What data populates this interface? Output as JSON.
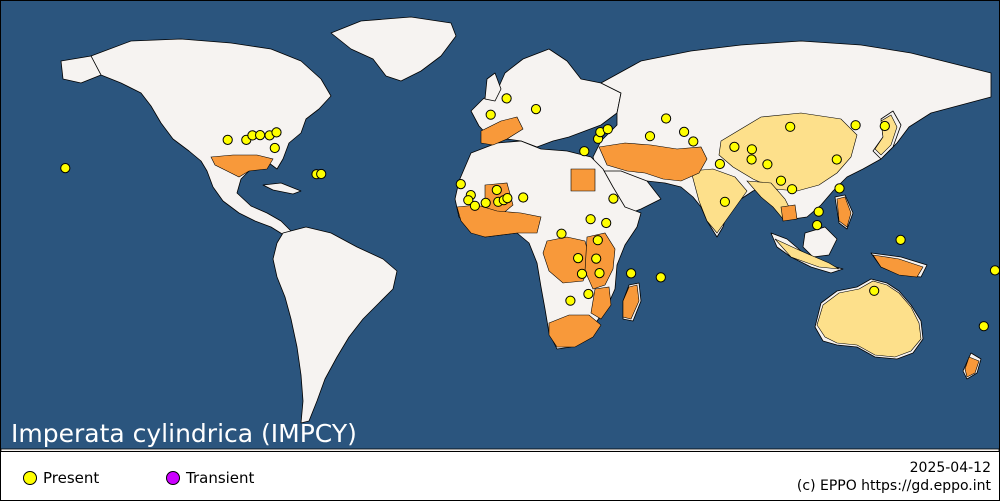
{
  "title": "Imperata cylindrica (IMPCY)",
  "date": "2025-04-12",
  "credit": "(c) EPPO https://gd.eppo.int",
  "legend": [
    {
      "label": "Present",
      "color": "#ffff00"
    },
    {
      "label": "Transient",
      "color": "#cc00ff"
    }
  ],
  "colors": {
    "ocean": "#2b557e",
    "land": "#f6f3f1",
    "country_present": "#fde08b",
    "region_present": "#f8993a",
    "border": "#000000"
  },
  "records": [
    {
      "place": "Hawaii",
      "lon": -157.0,
      "lat": 20.5,
      "status": "present"
    },
    {
      "place": "Texas",
      "lon": -98.5,
      "lat": 31.0,
      "status": "present"
    },
    {
      "place": "Louisiana",
      "lon": -91.8,
      "lat": 31.0,
      "status": "present"
    },
    {
      "place": "Mississippi",
      "lon": -89.6,
      "lat": 32.7,
      "status": "present"
    },
    {
      "place": "Alabama",
      "lon": -86.8,
      "lat": 32.8,
      "status": "present"
    },
    {
      "place": "Georgia (US)",
      "lon": -83.4,
      "lat": 32.7,
      "status": "present"
    },
    {
      "place": "South Carolina",
      "lon": -80.9,
      "lat": 33.8,
      "status": "present"
    },
    {
      "place": "Florida",
      "lon": -81.5,
      "lat": 28.0,
      "status": "present"
    },
    {
      "place": "Puerto Rico",
      "lon": -66.5,
      "lat": 18.2,
      "status": "present"
    },
    {
      "place": "Virgin Islands",
      "lon": -64.8,
      "lat": 18.3,
      "status": "present"
    },
    {
      "place": "Senegal",
      "lon": -14.5,
      "lat": 14.5,
      "status": "present"
    },
    {
      "place": "Guinea",
      "lon": -10.9,
      "lat": 10.4,
      "status": "present"
    },
    {
      "place": "Sierra Leone",
      "lon": -11.8,
      "lat": 8.5,
      "status": "present"
    },
    {
      "place": "Liberia",
      "lon": -9.4,
      "lat": 6.4,
      "status": "present"
    },
    {
      "place": "Cote d'Ivoire",
      "lon": -5.5,
      "lat": 7.5,
      "status": "present"
    },
    {
      "place": "Ghana",
      "lon": -1.0,
      "lat": 7.9,
      "status": "present"
    },
    {
      "place": "Burkina Faso",
      "lon": -1.5,
      "lat": 12.3,
      "status": "present"
    },
    {
      "place": "Togo",
      "lon": 1.0,
      "lat": 8.5,
      "status": "present"
    },
    {
      "place": "Benin",
      "lon": 2.3,
      "lat": 9.3,
      "status": "present"
    },
    {
      "place": "Nigeria",
      "lon": 8.0,
      "lat": 9.5,
      "status": "present"
    },
    {
      "place": "Egypt",
      "lon": 30.0,
      "lat": 26.8,
      "status": "present"
    },
    {
      "place": "Israel",
      "lon": 35.0,
      "lat": 31.4,
      "status": "present"
    },
    {
      "place": "Lebanon",
      "lon": 35.8,
      "lat": 33.9,
      "status": "present"
    },
    {
      "place": "Syria",
      "lon": 38.5,
      "lat": 35.0,
      "status": "present"
    },
    {
      "place": "Iran",
      "lon": 53.7,
      "lat": 32.4,
      "status": "present"
    },
    {
      "place": "Turkmenistan",
      "lon": 59.5,
      "lat": 39.0,
      "status": "present"
    },
    {
      "place": "Afghanistan",
      "lon": 66.0,
      "lat": 34.0,
      "status": "present"
    },
    {
      "place": "Pakistan",
      "lon": 69.3,
      "lat": 30.4,
      "status": "present"
    },
    {
      "place": "Nepal",
      "lon": 84.1,
      "lat": 28.4,
      "status": "present"
    },
    {
      "place": "Bhutan",
      "lon": 90.4,
      "lat": 27.5,
      "status": "present"
    },
    {
      "place": "Bangladesh",
      "lon": 90.3,
      "lat": 23.7,
      "status": "present"
    },
    {
      "place": "India",
      "lon": 78.9,
      "lat": 22.0,
      "status": "present"
    },
    {
      "place": "Myanmar",
      "lon": 96.0,
      "lat": 21.9,
      "status": "present"
    },
    {
      "place": "Thailand",
      "lon": 100.9,
      "lat": 15.8,
      "status": "present"
    },
    {
      "place": "Cambodia",
      "lon": 104.9,
      "lat": 12.6,
      "status": "present"
    },
    {
      "place": "Sri Lanka",
      "lon": 80.7,
      "lat": 7.9,
      "status": "present"
    },
    {
      "place": "China",
      "lon": 104.2,
      "lat": 35.9,
      "status": "present"
    },
    {
      "place": "Korea",
      "lon": 127.8,
      "lat": 36.5,
      "status": "present"
    },
    {
      "place": "Japan",
      "lon": 138.3,
      "lat": 36.2,
      "status": "present"
    },
    {
      "place": "Taiwan",
      "lon": 121.0,
      "lat": 23.7,
      "status": "present"
    },
    {
      "place": "Philippines",
      "lon": 122.0,
      "lat": 12.9,
      "status": "present"
    },
    {
      "place": "Malaysia",
      "lon": 114.5,
      "lat": 4.2,
      "status": "present"
    },
    {
      "place": "Indonesia",
      "lon": 113.9,
      "lat": -0.8,
      "status": "present"
    },
    {
      "place": "Papua New Guinea",
      "lon": 144.0,
      "lat": -6.3,
      "status": "present"
    },
    {
      "place": "Australia",
      "lon": 134.5,
      "lat": -25.3,
      "status": "present"
    },
    {
      "place": "Fiji",
      "lon": 178.0,
      "lat": -17.7,
      "status": "present"
    },
    {
      "place": "New Zealand",
      "lon": 174.0,
      "lat": -38.5,
      "status": "present"
    },
    {
      "place": "Madagascar",
      "lon": 46.9,
      "lat": -18.8,
      "status": "present"
    },
    {
      "place": "Mauritius",
      "lon": 57.6,
      "lat": -20.3,
      "status": "present"
    },
    {
      "place": "Zambia",
      "lon": 27.8,
      "lat": -13.1,
      "status": "present"
    },
    {
      "place": "Tanzania",
      "lon": 34.9,
      "lat": -6.4,
      "status": "present"
    },
    {
      "place": "Kenya",
      "lon": 37.9,
      "lat": 0.0,
      "status": "present"
    },
    {
      "place": "Uganda",
      "lon": 32.3,
      "lat": 1.4,
      "status": "present"
    },
    {
      "place": "Ethiopia",
      "lon": 40.5,
      "lat": 9.1,
      "status": "present"
    },
    {
      "place": "DR Congo",
      "lon": 21.8,
      "lat": -4.0,
      "status": "present"
    },
    {
      "place": "Malawi",
      "lon": 34.3,
      "lat": -13.3,
      "status": "present"
    },
    {
      "place": "Mozambique",
      "lon": 35.5,
      "lat": -18.7,
      "status": "present"
    },
    {
      "place": "Zimbabwe",
      "lon": 29.2,
      "lat": -19.0,
      "status": "present"
    },
    {
      "place": "South Africa",
      "lon": 25.0,
      "lat": -29.0,
      "status": "present"
    },
    {
      "place": "Eswatini",
      "lon": 31.5,
      "lat": -26.5,
      "status": "present"
    },
    {
      "place": "Spain",
      "lon": -3.7,
      "lat": 40.4,
      "status": "present"
    },
    {
      "place": "France",
      "lon": 2.0,
      "lat": 46.5,
      "status": "present"
    },
    {
      "place": "Italy",
      "lon": 12.6,
      "lat": 42.5,
      "status": "present"
    }
  ]
}
